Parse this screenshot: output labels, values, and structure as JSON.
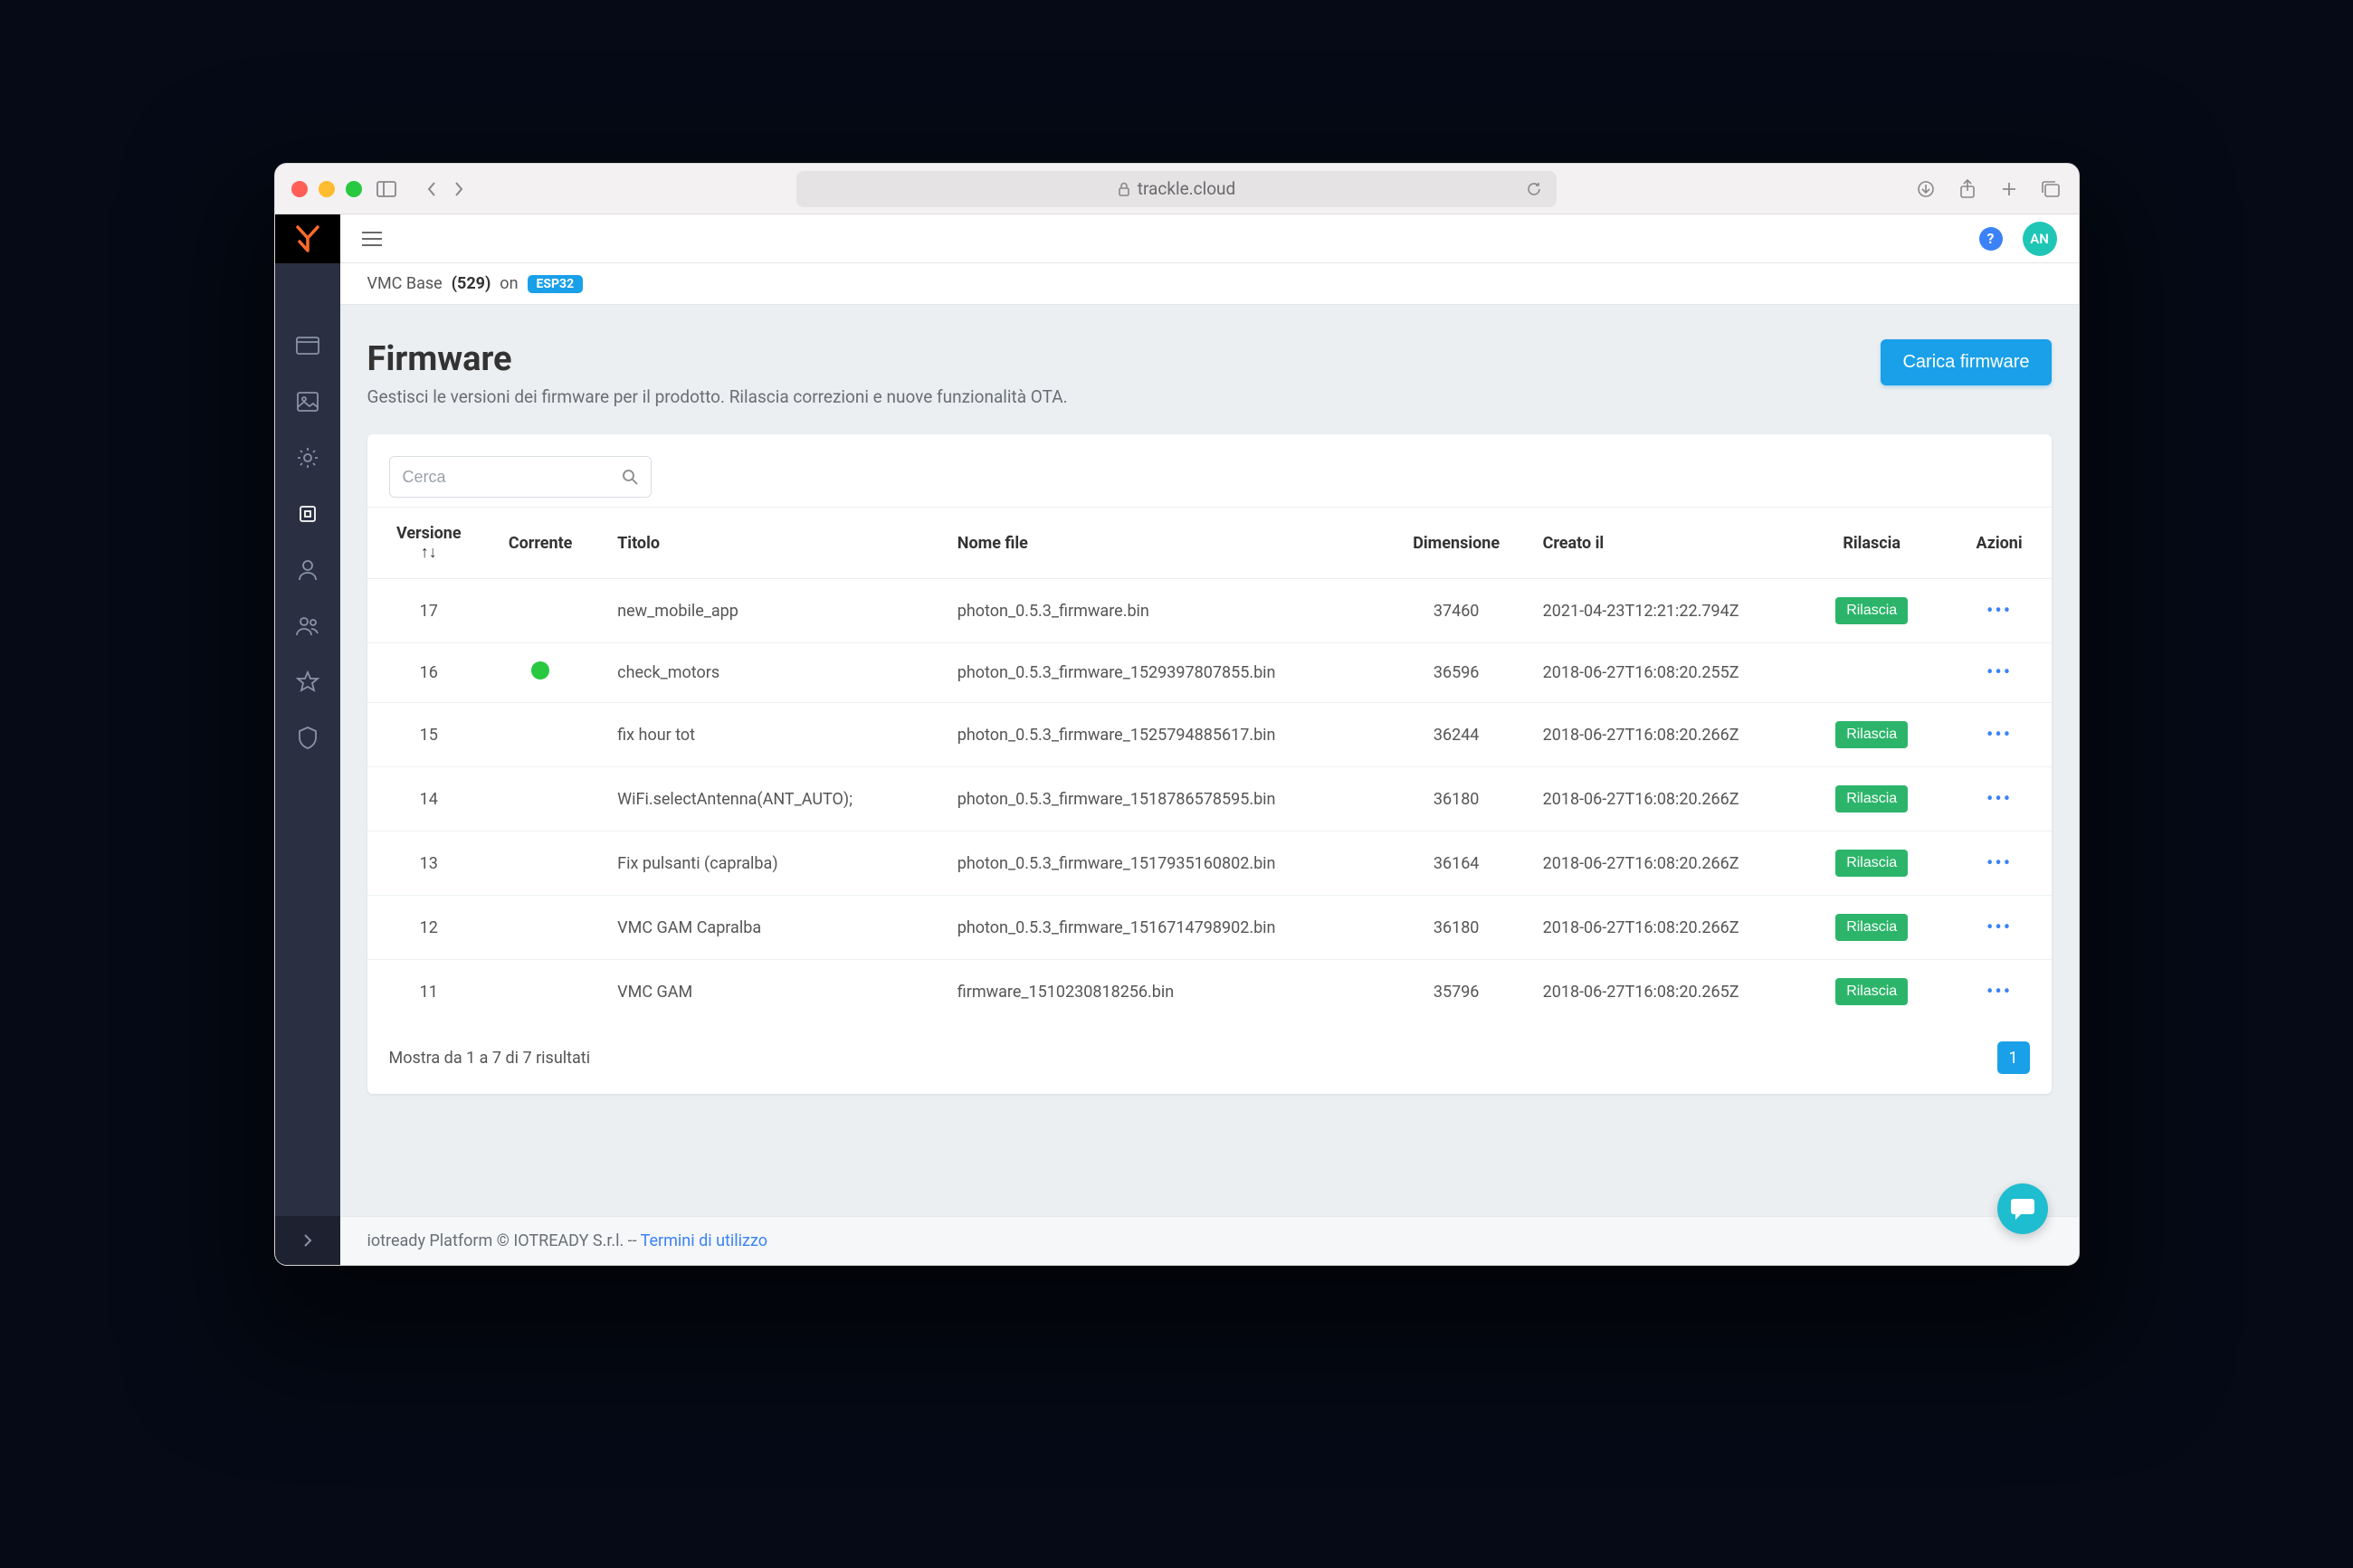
{
  "browser": {
    "url": "trackle.cloud"
  },
  "topbar": {
    "help": "?",
    "avatar": "AN"
  },
  "breadcrumb": {
    "product": "VMC Base",
    "product_num": "(529)",
    "on": "on",
    "chip": "ESP32"
  },
  "page": {
    "title": "Firmware",
    "subtitle": "Gestisci le versioni dei firmware per il prodotto. Rilascia correzioni e nuove funzionalità OTA.",
    "upload_button": "Carica firmware"
  },
  "search": {
    "placeholder": "Cerca"
  },
  "table": {
    "headers": {
      "version": "Versione ↑↓",
      "current": "Corrente",
      "title": "Titolo",
      "filename": "Nome file",
      "size": "Dimensione",
      "created": "Creato il",
      "release": "Rilascia",
      "actions": "Azioni"
    },
    "release_label": "Rilascia",
    "rows": [
      {
        "version": "17",
        "current": false,
        "title": "new_mobile_app",
        "filename": "photon_0.5.3_firmware.bin",
        "size": "37460",
        "created": "2021-04-23T12:21:22.794Z",
        "releasable": true
      },
      {
        "version": "16",
        "current": true,
        "title": "check_motors",
        "filename": "photon_0.5.3_firmware_1529397807855.bin",
        "size": "36596",
        "created": "2018-06-27T16:08:20.255Z",
        "releasable": false
      },
      {
        "version": "15",
        "current": false,
        "title": "fix hour tot",
        "filename": "photon_0.5.3_firmware_1525794885617.bin",
        "size": "36244",
        "created": "2018-06-27T16:08:20.266Z",
        "releasable": true
      },
      {
        "version": "14",
        "current": false,
        "title": "WiFi.selectAntenna(ANT_AUTO);",
        "filename": "photon_0.5.3_firmware_1518786578595.bin",
        "size": "36180",
        "created": "2018-06-27T16:08:20.266Z",
        "releasable": true
      },
      {
        "version": "13",
        "current": false,
        "title": "Fix pulsanti (capralba)",
        "filename": "photon_0.5.3_firmware_1517935160802.bin",
        "size": "36164",
        "created": "2018-06-27T16:08:20.266Z",
        "releasable": true
      },
      {
        "version": "12",
        "current": false,
        "title": "VMC GAM Capralba",
        "filename": "photon_0.5.3_firmware_1516714798902.bin",
        "size": "36180",
        "created": "2018-06-27T16:08:20.266Z",
        "releasable": true
      },
      {
        "version": "11",
        "current": false,
        "title": "VMC GAM",
        "filename": "firmware_1510230818256.bin",
        "size": "35796",
        "created": "2018-06-27T16:08:20.265Z",
        "releasable": true
      }
    ],
    "footer_text": "Mostra da 1 a 7 di 7 risultati",
    "page": "1"
  },
  "footer": {
    "text": "iotready Platform © IOTREADY S.r.l. --",
    "link": "Termini di utilizzo"
  },
  "colors": {
    "page_bg": "#eceff1",
    "sidebar_bg": "#2a3042",
    "primary": "#1aa0e8",
    "success": "#2cb56a",
    "avatar_bg": "#1fc6b5",
    "chat_bg": "#1fbdd0"
  }
}
